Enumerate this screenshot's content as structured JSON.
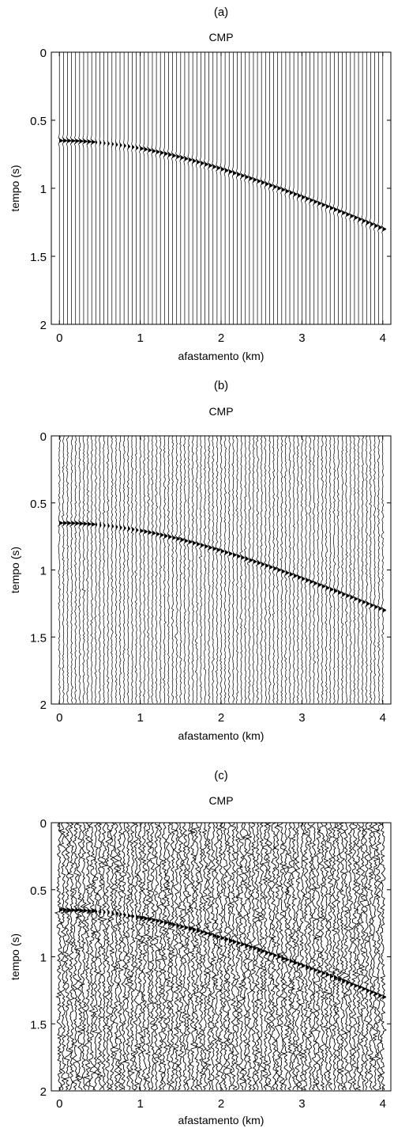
{
  "chart_data": [
    {
      "type": "seismic-wiggle",
      "panel_label": "(a)",
      "title": "CMP",
      "xlabel": "afastamento (km)",
      "ylabel": "tempo (s)",
      "xlim": [
        -0.1,
        4.1
      ],
      "ylim": [
        2,
        0
      ],
      "xticks": [
        0,
        1,
        2,
        3,
        4
      ],
      "yticks": [
        0,
        0.5,
        1,
        1.5,
        2
      ],
      "noise_level": 0.0,
      "event": {
        "t0": 0.65,
        "t_max_offset": 1.3,
        "max_offset": 4.0,
        "shape": "hyperbolic"
      }
    },
    {
      "type": "seismic-wiggle",
      "panel_label": "(b)",
      "title": "CMP",
      "xlabel": "afastamento (km)",
      "ylabel": "tempo (s)",
      "xlim": [
        -0.1,
        4.1
      ],
      "ylim": [
        2,
        0
      ],
      "xticks": [
        0,
        1,
        2,
        3,
        4
      ],
      "yticks": [
        0,
        0.5,
        1,
        1.5,
        2
      ],
      "noise_level": 0.35,
      "event": {
        "t0": 0.65,
        "t_max_offset": 1.3,
        "max_offset": 4.0,
        "shape": "hyperbolic"
      }
    },
    {
      "type": "seismic-wiggle",
      "panel_label": "(c)",
      "title": "CMP",
      "xlabel": "afastamento (km)",
      "ylabel": "tempo (s)",
      "xlim": [
        -0.1,
        4.1
      ],
      "ylim": [
        2,
        0
      ],
      "xticks": [
        0,
        1,
        2,
        3,
        4
      ],
      "yticks": [
        0,
        0.5,
        1,
        1.5,
        2
      ],
      "noise_level": 1.0,
      "event": {
        "t0": 0.65,
        "t_max_offset": 1.3,
        "max_offset": 4.0,
        "shape": "hyperbolic"
      }
    }
  ],
  "colors": {
    "trace": "#000000",
    "axis": "#000000",
    "background": "#ffffff"
  }
}
